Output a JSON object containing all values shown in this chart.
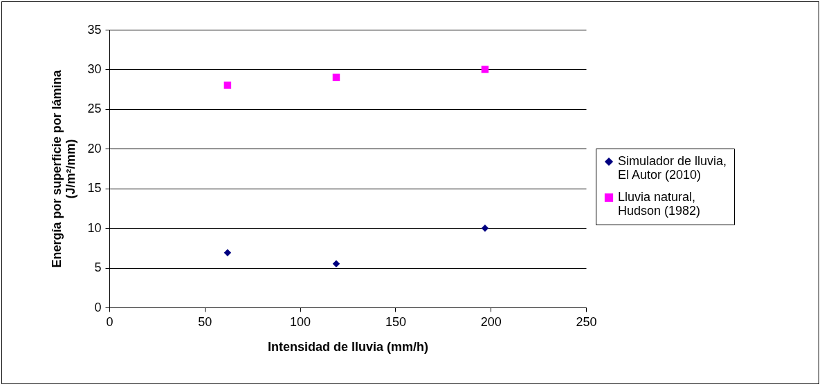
{
  "chart_data": {
    "type": "scatter",
    "xlabel": "Intensidad de lluvia (mm/h)",
    "ylabel": "Energía por superficie por lámina (J/m²/mm)",
    "x": [
      62,
      119,
      197
    ],
    "series": [
      {
        "name": "Simulador de lluvia, El Autor (2010)",
        "color": "#000080",
        "marker": "diamond",
        "values": [
          6.9,
          5.5,
          10
        ]
      },
      {
        "name": "Lluvia natural, Hudson (1982)",
        "color": "#ff00ff",
        "marker": "square",
        "values": [
          28,
          29,
          30
        ]
      }
    ],
    "xlim": [
      0,
      250
    ],
    "xticks": [
      0,
      50,
      100,
      150,
      200,
      250
    ],
    "ylim": [
      0,
      35
    ],
    "yticks": [
      0,
      5,
      10,
      15,
      20,
      25,
      30,
      35
    ],
    "grid": "y",
    "legend": "right"
  }
}
